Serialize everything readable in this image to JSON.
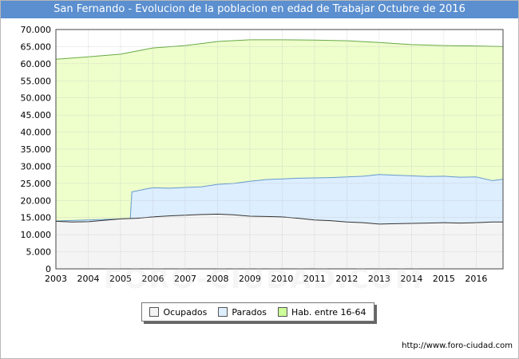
{
  "title": "San Fernando - Evolucion de la poblacion en edad de Trabajar Octubre de 2016",
  "source": "http://www.foro-ciudad.com",
  "watermark": "FORO-CIUDAD.COM",
  "colors": {
    "title_bg": "#5b8fcf",
    "hab_fill": "#eeffcc",
    "hab_line": "#66aa44",
    "parados_fill": "#ddeeff",
    "parados_line": "#6699cc",
    "ocupados_fill": "#f4f4f4",
    "ocupados_line": "#333333"
  },
  "chart_data": {
    "type": "area",
    "xlim": [
      2003,
      2016.83
    ],
    "ylim": [
      0,
      70000
    ],
    "x_ticks": [
      "2003",
      "2004",
      "2005",
      "2006",
      "2007",
      "2008",
      "2009",
      "2010",
      "2011",
      "2012",
      "2013",
      "2014",
      "2015",
      "2016"
    ],
    "y_ticks": [
      "0",
      "5.000",
      "10.000",
      "15.000",
      "20.000",
      "25.000",
      "30.000",
      "35.000",
      "40.000",
      "45.000",
      "50.000",
      "55.000",
      "60.000",
      "65.000",
      "70.000"
    ],
    "grid": true,
    "legend_position": "bottom",
    "series": [
      {
        "name": "Ocupados",
        "x": [
          2003,
          2003.5,
          2004,
          2004.5,
          2005,
          2005.5,
          2006,
          2006.5,
          2007,
          2007.5,
          2008,
          2008.5,
          2009,
          2009.5,
          2010,
          2010.5,
          2011,
          2011.5,
          2012,
          2012.5,
          2013,
          2013.5,
          2014,
          2014.5,
          2015,
          2015.5,
          2016,
          2016.5,
          2016.83
        ],
        "values": [
          13900,
          13700,
          13800,
          14200,
          14600,
          14800,
          15200,
          15500,
          15700,
          15900,
          16000,
          15800,
          15400,
          15300,
          15200,
          14800,
          14300,
          14100,
          13700,
          13500,
          13100,
          13200,
          13300,
          13400,
          13500,
          13400,
          13500,
          13700,
          13700
        ]
      },
      {
        "name": "Parados",
        "x": [
          2003,
          2005.3,
          2005.35,
          2005.8,
          2006,
          2006.5,
          2007,
          2007.5,
          2008,
          2008.5,
          2009,
          2009.5,
          2010,
          2010.5,
          2011,
          2011.5,
          2012,
          2012.5,
          2013,
          2013.5,
          2014,
          2014.5,
          2015,
          2015.5,
          2016,
          2016.5,
          2016.83
        ],
        "values": [
          14000,
          14700,
          22500,
          23400,
          23700,
          23600,
          23800,
          24000,
          24700,
          25000,
          25600,
          26100,
          26300,
          26500,
          26600,
          26700,
          26900,
          27100,
          27600,
          27400,
          27200,
          27000,
          27100,
          26800,
          26900,
          25800,
          26200
        ]
      },
      {
        "name": "Hab. entre 16-64",
        "x": [
          2003,
          2004,
          2005,
          2006,
          2007,
          2008,
          2009,
          2010,
          2011,
          2012,
          2013,
          2014,
          2015,
          2016,
          2016.83
        ],
        "values": [
          61300,
          62000,
          62800,
          64600,
          65300,
          66500,
          67000,
          67000,
          66900,
          66700,
          66200,
          65600,
          65300,
          65200,
          65000
        ]
      }
    ]
  }
}
